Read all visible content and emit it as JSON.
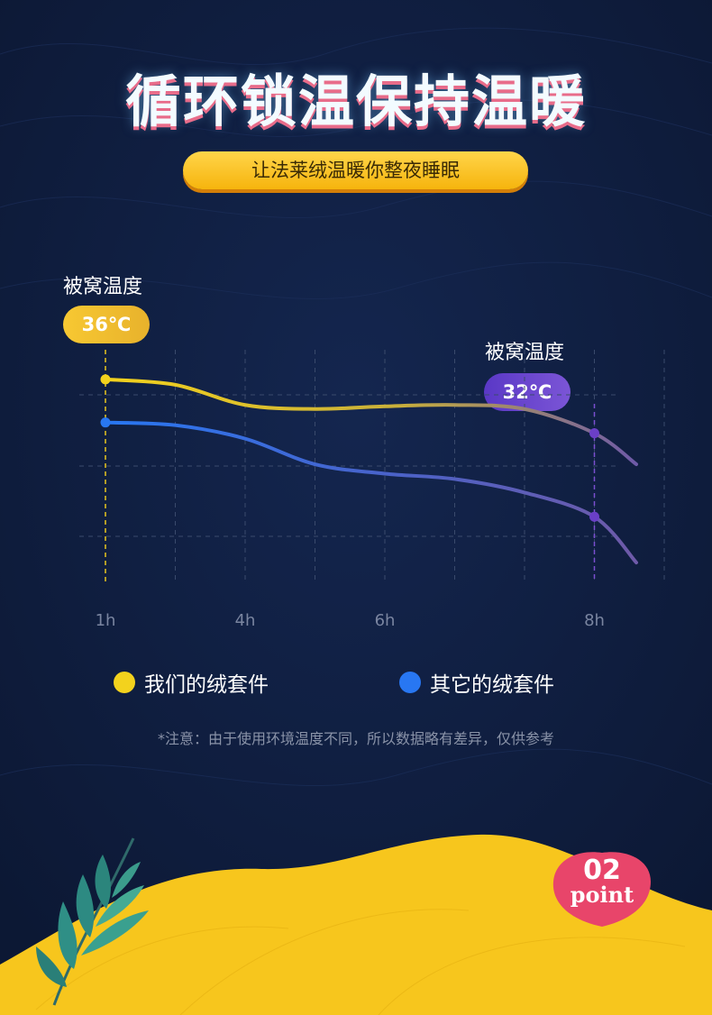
{
  "header": {
    "title": "循环锁温保持温暖",
    "subtitle": "让法莱绒温暖你整夜睡眠"
  },
  "annotations": {
    "left_label": "被窝温度",
    "left_value": "36℃",
    "right_label": "被窝温度",
    "right_value": "32℃"
  },
  "legend": {
    "ours": "我们的绒套件",
    "others": "其它的绒套件"
  },
  "note": "*注意：由于使用环境温度不同，所以数据略有差异，仅供参考",
  "badge": {
    "number": "02",
    "word": "point"
  },
  "colors": {
    "background": "#0f1d3e",
    "ours": "#f3d21d",
    "others": "#2877f2",
    "late": "#6e5aa8",
    "badge": "#e8456a",
    "wave": "#f7c61d"
  },
  "chart_data": {
    "type": "line",
    "x_ticks": [
      "1h",
      "4h",
      "6h",
      "8h"
    ],
    "series": [
      {
        "name": "我们的绒套件",
        "x": [
          1,
          2,
          3,
          4,
          5,
          6,
          7,
          8,
          8.6
        ],
        "values": [
          36,
          35.6,
          34.1,
          33.8,
          34.0,
          34.1,
          33.8,
          32.0,
          29.7
        ]
      },
      {
        "name": "其它的绒套件",
        "x": [
          1,
          2,
          3,
          4,
          5,
          6,
          7,
          8,
          8.6
        ],
        "values": [
          32.8,
          32.6,
          31.6,
          29.7,
          29.0,
          28.6,
          27.6,
          25.8,
          22.4
        ]
      }
    ],
    "highlight_points": [
      {
        "series": 0,
        "x": 1
      },
      {
        "series": 1,
        "x": 1
      },
      {
        "series": 0,
        "x": 8
      },
      {
        "series": 1,
        "x": 8
      }
    ],
    "grid": true
  }
}
